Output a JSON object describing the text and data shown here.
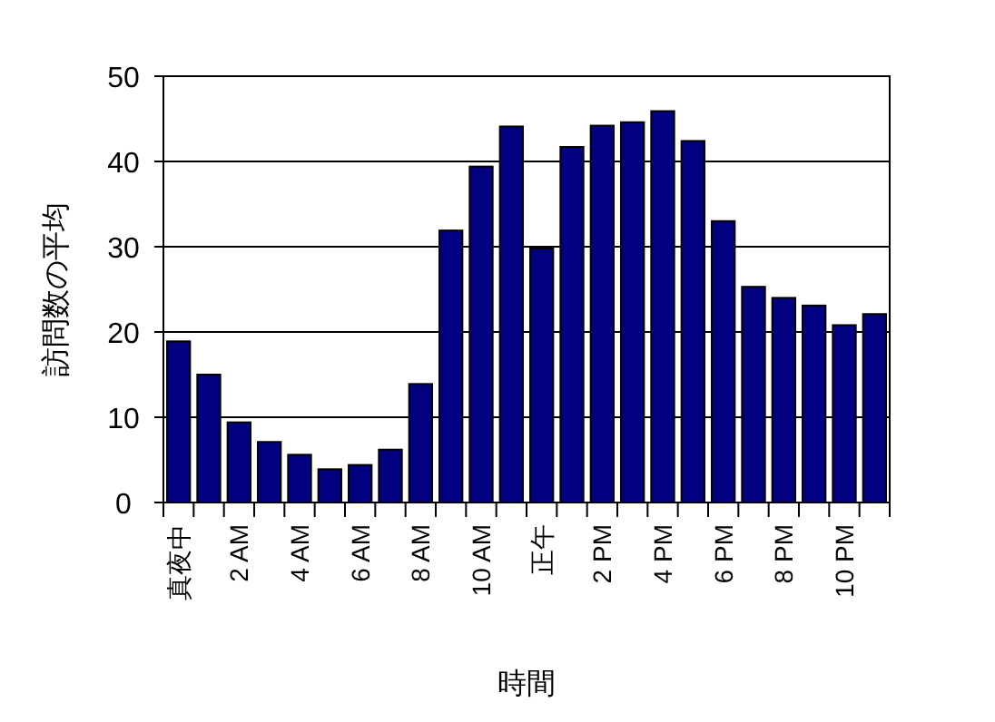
{
  "chart_data": {
    "type": "bar",
    "xlabel": "時間",
    "ylabel": "訪問数の平均",
    "categories": [
      "真夜中",
      null,
      "2 AM",
      null,
      "4 AM",
      null,
      "6 AM",
      null,
      "8 AM",
      null,
      "10 AM",
      null,
      "正午",
      null,
      "2 PM",
      null,
      "4 PM",
      null,
      "6 PM",
      null,
      "8 PM",
      null,
      "10 PM",
      null
    ],
    "values": [
      18.9,
      15,
      9.4,
      7.1,
      5.6,
      3.9,
      4.4,
      6.2,
      13.9,
      31.9,
      39.4,
      44.1,
      29.8,
      41.7,
      44.2,
      44.6,
      45.9,
      42.4,
      33,
      25.3,
      24,
      23.1,
      20.8,
      22.1
    ],
    "color": "#000080",
    "ylim": [
      0,
      50
    ],
    "yticks": [
      0,
      10,
      20,
      30,
      40,
      50
    ],
    "grid": "y"
  }
}
